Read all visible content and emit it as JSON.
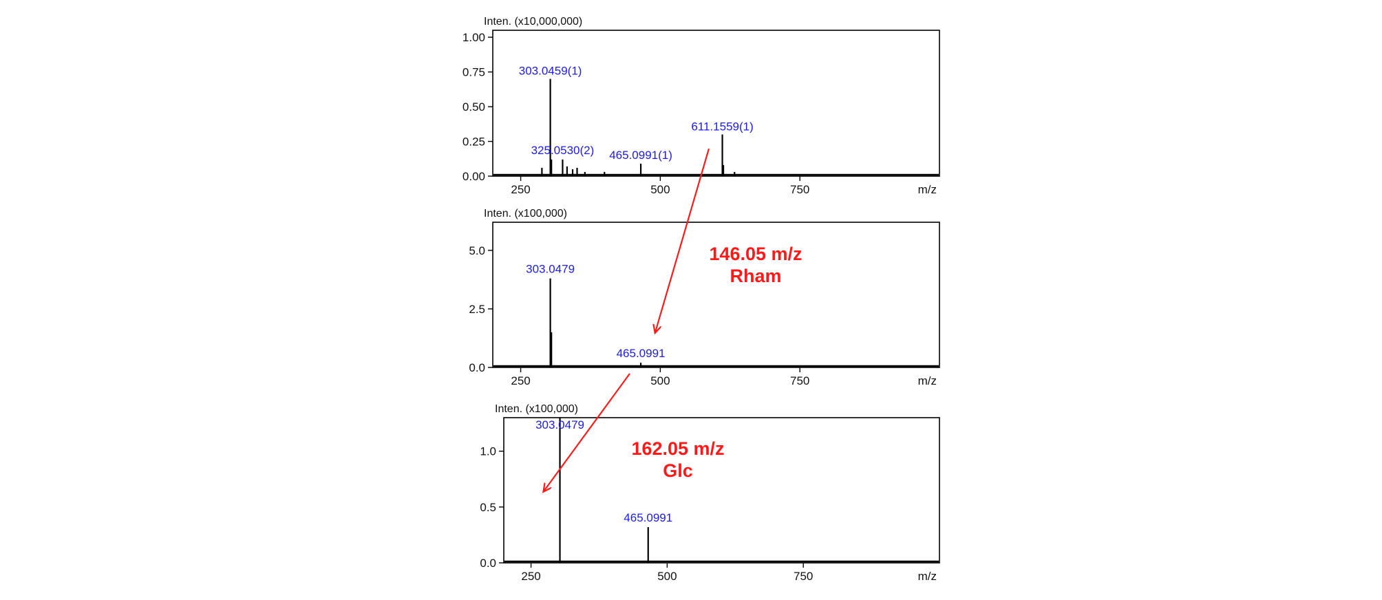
{
  "colors": {
    "label": "#1c1cf0",
    "annotation": "#ff1a1a",
    "axis": "#000000",
    "peak": "#000000"
  },
  "chart_data": [
    {
      "type": "bar",
      "intensity_unit": "Inten. (x10,000,000)",
      "xlabel": "m/z",
      "xlim": [
        200,
        1000
      ],
      "ylim": [
        0,
        1.05
      ],
      "xticks": [
        250,
        500,
        750
      ],
      "xtick_labels": [
        "250",
        "500",
        "750"
      ],
      "yticks": [
        0,
        0.25,
        0.5,
        0.75,
        1.0
      ],
      "ytick_labels": [
        "0.00",
        "0.25",
        "0.50",
        "0.75",
        "1.00"
      ],
      "peaks": [
        {
          "mz": 288.0,
          "value": 0.06
        },
        {
          "mz": 303.0459,
          "value": 0.7,
          "label": "303.0459(1)"
        },
        {
          "mz": 305.0,
          "value": 0.12
        },
        {
          "mz": 325.053,
          "value": 0.12,
          "label": "325.0530(2)"
        },
        {
          "mz": 333.0,
          "value": 0.07
        },
        {
          "mz": 343.0,
          "value": 0.05
        },
        {
          "mz": 351.0,
          "value": 0.06
        },
        {
          "mz": 365.0,
          "value": 0.03
        },
        {
          "mz": 400.0,
          "value": 0.03
        },
        {
          "mz": 465.0991,
          "value": 0.09,
          "label": "465.0991(1)"
        },
        {
          "mz": 611.1559,
          "value": 0.3,
          "label": "611.1559(1)"
        },
        {
          "mz": 613.0,
          "value": 0.08
        },
        {
          "mz": 633.0,
          "value": 0.03
        }
      ]
    },
    {
      "type": "bar",
      "intensity_unit": "Inten. (x100,000)",
      "xlabel": "m/z",
      "xlim": [
        200,
        1000
      ],
      "ylim": [
        0,
        6.2
      ],
      "xticks": [
        250,
        500,
        750
      ],
      "xtick_labels": [
        "250",
        "500",
        "750"
      ],
      "yticks": [
        0,
        2.5,
        5.0
      ],
      "ytick_labels": [
        "0.0",
        "2.5",
        "5.0"
      ],
      "peaks": [
        {
          "mz": 303.0479,
          "value": 3.8,
          "label": "303.0479"
        },
        {
          "mz": 305.0,
          "value": 1.5
        },
        {
          "mz": 465.0991,
          "value": 0.2,
          "label": "465.0991"
        }
      ]
    },
    {
      "type": "bar",
      "intensity_unit": "Inten. (x100,000)",
      "xlabel": "m/z",
      "xlim": [
        200,
        1000
      ],
      "ylim": [
        0,
        1.3
      ],
      "xticks": [
        250,
        500,
        750
      ],
      "xtick_labels": [
        "250",
        "500",
        "750"
      ],
      "yticks": [
        0,
        0.5,
        1.0
      ],
      "ytick_labels": [
        "0.0",
        "0.5",
        "1.0"
      ],
      "peaks": [
        {
          "mz": 303.0479,
          "value": 1.3,
          "label": "303.0479"
        },
        {
          "mz": 465.0991,
          "value": 0.32,
          "label": "465.0991"
        }
      ]
    }
  ],
  "annotations": [
    {
      "lines": [
        "146.05 m/z",
        "Rham"
      ]
    },
    {
      "lines": [
        "162.05 m/z",
        "Glc"
      ]
    }
  ]
}
